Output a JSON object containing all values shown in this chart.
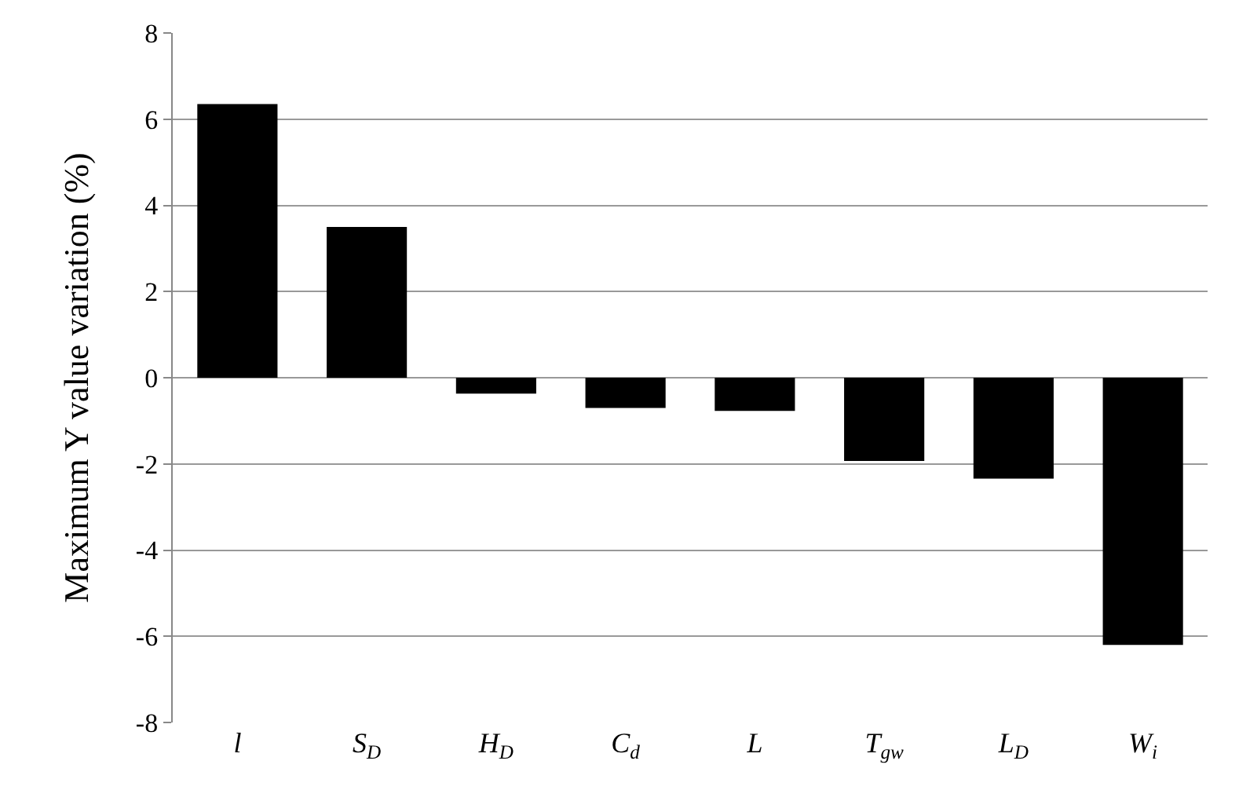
{
  "chart_data": {
    "type": "bar",
    "ylabel": "Maximum Y value variation (%)",
    "categories": [
      "l",
      "S$_{D}$",
      "H$_{D}$",
      "C$_{d}$",
      "L",
      "T$_{gw}$",
      "L$_{D}$",
      "W$_{i}$"
    ],
    "values": [
      6.35,
      3.5,
      -0.37,
      -0.7,
      -0.77,
      -1.93,
      -2.34,
      -6.2
    ],
    "color": "#000000",
    "ylim": [
      -8,
      8
    ],
    "yticks": [
      -8,
      -6,
      -4,
      -2,
      0,
      2,
      4,
      6,
      8
    ],
    "grid": "y",
    "legend": false
  }
}
